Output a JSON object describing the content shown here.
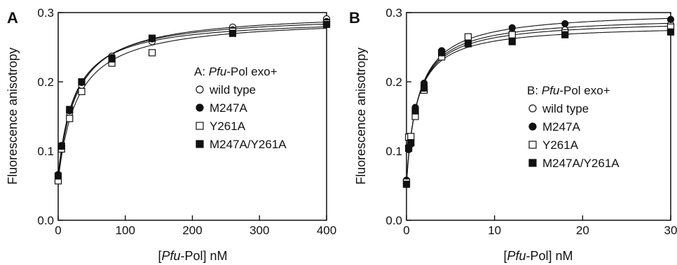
{
  "chart_data": [
    {
      "type": "scatter",
      "panel": "A",
      "legend_title_italic": "Pfu",
      "legend_title_rest": "-Pol exo+",
      "legend_prefix": "A: ",
      "xlabel_prefix": "[",
      "xlabel_italic": "Pfu",
      "xlabel_rest": "-Pol] nM",
      "ylabel": "Fluorescence anisotropy",
      "xlim": [
        0,
        400
      ],
      "ylim": [
        0.0,
        0.3
      ],
      "xticks": [
        0,
        100,
        200,
        300,
        400
      ],
      "xtick_labels": [
        "0",
        "100",
        "200",
        "300",
        "400"
      ],
      "yticks": [
        0.0,
        0.1,
        0.2,
        0.3
      ],
      "ytick_labels": [
        "0.0",
        "0.1",
        "0.2",
        "0.3"
      ],
      "grid": false,
      "legend_position": "right",
      "series": [
        {
          "name": "wild type",
          "marker": "circle-open",
          "x": [
            0,
            5,
            17,
            35,
            80,
            140,
            260,
            400
          ],
          "y": [
            0.062,
            0.105,
            0.155,
            0.195,
            0.237,
            0.258,
            0.279,
            0.291
          ]
        },
        {
          "name": "M247A",
          "marker": "circle-filled",
          "x": [
            0,
            5,
            17,
            35,
            80,
            140,
            260,
            400
          ],
          "y": [
            0.066,
            0.108,
            0.158,
            0.199,
            0.235,
            0.262,
            0.275,
            0.287
          ]
        },
        {
          "name": "Y261A",
          "marker": "square-open",
          "x": [
            0,
            5,
            17,
            35,
            80,
            140,
            260,
            400
          ],
          "y": [
            0.057,
            0.103,
            0.147,
            0.186,
            0.227,
            0.242,
            0.273,
            0.285
          ]
        },
        {
          "name": "M247A/Y261A",
          "marker": "square-filled",
          "x": [
            0,
            5,
            17,
            35,
            80,
            140,
            260,
            400
          ],
          "y": [
            0.064,
            0.107,
            0.16,
            0.2,
            0.233,
            0.263,
            0.27,
            0.283
          ]
        }
      ]
    },
    {
      "type": "scatter",
      "panel": "B",
      "legend_title_italic": "Pfu",
      "legend_title_rest": "-Pol exo+",
      "legend_prefix": "B: ",
      "xlabel_prefix": "[",
      "xlabel_italic": "Pfu",
      "xlabel_rest": "-Pol] nM",
      "ylabel": "Fluorescence anisotropy",
      "xlim": [
        0,
        30
      ],
      "ylim": [
        0.0,
        0.3
      ],
      "xticks": [
        0,
        10,
        20,
        30
      ],
      "xtick_labels": [
        "0",
        "10",
        "20",
        "30"
      ],
      "yticks": [
        0.0,
        0.1,
        0.2,
        0.3
      ],
      "ytick_labels": [
        "0.0",
        "0.1",
        "0.2",
        "0.3"
      ],
      "grid": false,
      "legend_position": "right",
      "series": [
        {
          "name": "wild type",
          "marker": "circle-open",
          "x": [
            0,
            0.25,
            0.5,
            1,
            2,
            4,
            7,
            12,
            18,
            30
          ],
          "y": [
            0.056,
            0.106,
            0.115,
            0.16,
            0.193,
            0.243,
            0.262,
            0.271,
            0.275,
            0.283
          ]
        },
        {
          "name": "M247A",
          "marker": "circle-filled",
          "x": [
            0,
            0.25,
            0.5,
            1,
            2,
            4,
            7,
            12,
            18,
            30
          ],
          "y": [
            0.058,
            0.102,
            0.11,
            0.163,
            0.198,
            0.245,
            0.26,
            0.278,
            0.284,
            0.29
          ]
        },
        {
          "name": "Y261A",
          "marker": "square-open",
          "x": [
            0,
            0.25,
            0.5,
            1,
            2,
            4,
            7,
            12,
            18,
            30
          ],
          "y": [
            0.055,
            0.12,
            0.121,
            0.15,
            0.188,
            0.236,
            0.265,
            0.268,
            0.271,
            0.279
          ]
        },
        {
          "name": "M247A/Y261A",
          "marker": "square-filled",
          "x": [
            0,
            0.25,
            0.5,
            1,
            2,
            4,
            7,
            12,
            18,
            30
          ],
          "y": [
            0.052,
            0.104,
            0.112,
            0.158,
            0.191,
            0.242,
            0.255,
            0.258,
            0.268,
            0.272
          ]
        }
      ]
    }
  ]
}
